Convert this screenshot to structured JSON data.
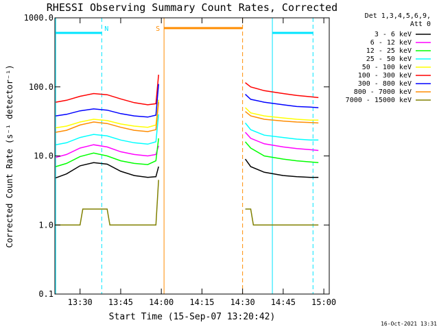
{
  "chart_data": {
    "type": "line",
    "title": "RHESSI Observing Summary Count Rates, Corrected",
    "xlabel": "Start Time (15-Sep-07 13:20:42)",
    "ylabel": "Corrected Count Rate (s⁻¹ detector⁻¹)",
    "y_scale": "log",
    "ylim": [
      0.1,
      1000
    ],
    "xlim": [
      "13:20:42",
      "15:02:00"
    ],
    "x_ticks": [
      "13:30",
      "13:45",
      "14:00",
      "14:15",
      "14:30",
      "14:45",
      "15:00"
    ],
    "y_ticks": [
      "0.1",
      "1.0",
      "10.0",
      "100.0",
      "1000.0"
    ],
    "grid": false,
    "legend": {
      "position": "right",
      "header": [
        "Det 1,3,4,5,6,9,",
        "Att 0"
      ]
    },
    "series": [
      {
        "name": "3 - 6 keV",
        "color": "#000000",
        "x": [
          "13:21",
          "13:25",
          "13:30",
          "13:35",
          "13:40",
          "13:45",
          "13:50",
          "13:55",
          "13:58",
          "13:59",
          "14:31",
          "14:33",
          "14:38",
          "14:45",
          "14:50",
          "14:55",
          "14:58"
        ],
        "values": [
          4.8,
          5.5,
          7.2,
          8.0,
          7.6,
          6.0,
          5.2,
          4.9,
          5.0,
          7.0,
          9.0,
          7.0,
          5.8,
          5.2,
          5.0,
          4.9,
          4.9
        ]
      },
      {
        "name": "6 - 12 keV",
        "color": "#ff00ff",
        "x": [
          "13:21",
          "13:25",
          "13:30",
          "13:35",
          "13:40",
          "13:45",
          "13:50",
          "13:55",
          "13:58",
          "13:59",
          "14:31",
          "14:33",
          "14:38",
          "14:45",
          "14:50",
          "14:55",
          "14:58"
        ],
        "values": [
          9.5,
          10.5,
          13.0,
          14.5,
          13.5,
          11.5,
          10.5,
          10.0,
          10.5,
          14.0,
          22.0,
          18.0,
          15.0,
          13.5,
          12.8,
          12.3,
          12.0
        ]
      },
      {
        "name": "12 - 25 keV",
        "color": "#00ff00",
        "x": [
          "13:21",
          "13:25",
          "13:30",
          "13:35",
          "13:40",
          "13:45",
          "13:50",
          "13:55",
          "13:58",
          "13:59",
          "14:31",
          "14:33",
          "14:38",
          "14:45",
          "14:50",
          "14:55",
          "14:58"
        ],
        "values": [
          7.0,
          7.8,
          9.8,
          11.0,
          10.0,
          8.5,
          7.8,
          7.5,
          8.5,
          18.0,
          16.0,
          13.0,
          10.0,
          9.0,
          8.5,
          8.2,
          8.0
        ]
      },
      {
        "name": "25 - 50 keV",
        "color": "#00ffff",
        "x": [
          "13:21",
          "13:25",
          "13:30",
          "13:35",
          "13:40",
          "13:45",
          "13:50",
          "13:55",
          "13:58",
          "13:59",
          "14:31",
          "14:33",
          "14:38",
          "14:45",
          "14:50",
          "14:55",
          "14:58"
        ],
        "values": [
          14.5,
          15.5,
          18.5,
          20.5,
          19.5,
          17.0,
          15.5,
          14.8,
          16.0,
          40.0,
          30.0,
          24.0,
          20.0,
          18.5,
          17.5,
          17.0,
          17.0
        ]
      },
      {
        "name": "50 - 100 keV",
        "color": "#ffff00",
        "x": [
          "13:21",
          "13:25",
          "13:30",
          "13:35",
          "13:40",
          "13:45",
          "13:50",
          "13:55",
          "13:58",
          "13:59",
          "14:31",
          "14:33",
          "14:38",
          "14:45",
          "14:50",
          "14:55",
          "14:58"
        ],
        "values": [
          25.5,
          27.0,
          31.0,
          34.0,
          32.5,
          29.0,
          27.0,
          26.0,
          28.0,
          65.0,
          50.0,
          42.0,
          38.0,
          35.5,
          34.0,
          33.0,
          33.0
        ]
      },
      {
        "name": "100 - 300 keV",
        "color": "#ff0000",
        "x": [
          "13:21",
          "13:25",
          "13:30",
          "13:35",
          "13:40",
          "13:45",
          "13:50",
          "13:55",
          "13:58",
          "13:59",
          "14:31",
          "14:33",
          "14:38",
          "14:45",
          "14:50",
          "14:55",
          "14:58"
        ],
        "values": [
          60.0,
          64.0,
          73.0,
          80.0,
          77.0,
          67.0,
          59.0,
          55.0,
          57.0,
          150.0,
          115.0,
          100.0,
          88.0,
          80.0,
          75.0,
          72.0,
          70.0
        ]
      },
      {
        "name": "300 - 800 keV",
        "color": "#0000ff",
        "x": [
          "13:21",
          "13:25",
          "13:30",
          "13:35",
          "13:40",
          "13:45",
          "13:50",
          "13:55",
          "13:58",
          "13:59",
          "14:31",
          "14:33",
          "14:38",
          "14:45",
          "14:50",
          "14:55",
          "14:58"
        ],
        "values": [
          38.0,
          40.0,
          45.0,
          48.0,
          46.0,
          41.0,
          38.0,
          36.5,
          39.0,
          110.0,
          78.0,
          66.0,
          60.0,
          55.0,
          52.0,
          51.0,
          50.0
        ]
      },
      {
        "name": "800 - 7000 keV",
        "color": "#ff8c00",
        "x": [
          "13:21",
          "13:25",
          "13:30",
          "13:35",
          "13:40",
          "13:45",
          "13:50",
          "13:55",
          "13:58",
          "13:59",
          "14:31",
          "14:33",
          "14:38",
          "14:45",
          "14:50",
          "14:55",
          "14:58"
        ],
        "values": [
          22.0,
          23.5,
          28.0,
          31.0,
          29.5,
          26.0,
          23.5,
          22.5,
          24.0,
          60.0,
          44.0,
          38.0,
          34.0,
          32.0,
          31.0,
          30.5,
          30.0
        ]
      },
      {
        "name": "7000 - 15000 keV",
        "color": "#808000",
        "x": [
          "13:21",
          "13:30",
          "13:31",
          "13:40",
          "13:41",
          "13:58",
          "13:59",
          "14:31",
          "14:33",
          "14:34",
          "14:58"
        ],
        "values": [
          1.0,
          1.0,
          1.7,
          1.7,
          1.0,
          1.0,
          4.5,
          1.7,
          1.7,
          1.0,
          1.0
        ]
      }
    ],
    "annotations": [
      {
        "label": "N",
        "type": "night",
        "color": "#00e5ff",
        "start": "13:21",
        "end": "13:38"
      },
      {
        "label": "S",
        "type": "saa",
        "color": "#ff8c00",
        "start": "14:01",
        "end": "14:30"
      },
      {
        "label": "",
        "type": "night",
        "color": "#00e5ff",
        "start": "14:41",
        "end": "14:56"
      }
    ],
    "vlines": [
      {
        "x": "13:21",
        "color": "#00e5ff",
        "style": "solid"
      },
      {
        "x": "13:38",
        "color": "#00e5ff",
        "style": "dashed"
      },
      {
        "x": "14:01",
        "color": "#ff8c00",
        "style": "solid"
      },
      {
        "x": "14:30",
        "color": "#ff8c00",
        "style": "dashed"
      },
      {
        "x": "14:41",
        "color": "#00e5ff",
        "style": "solid"
      },
      {
        "x": "14:56",
        "color": "#00e5ff",
        "style": "dashed"
      }
    ],
    "footer": "16-Oct-2021 13:31"
  }
}
